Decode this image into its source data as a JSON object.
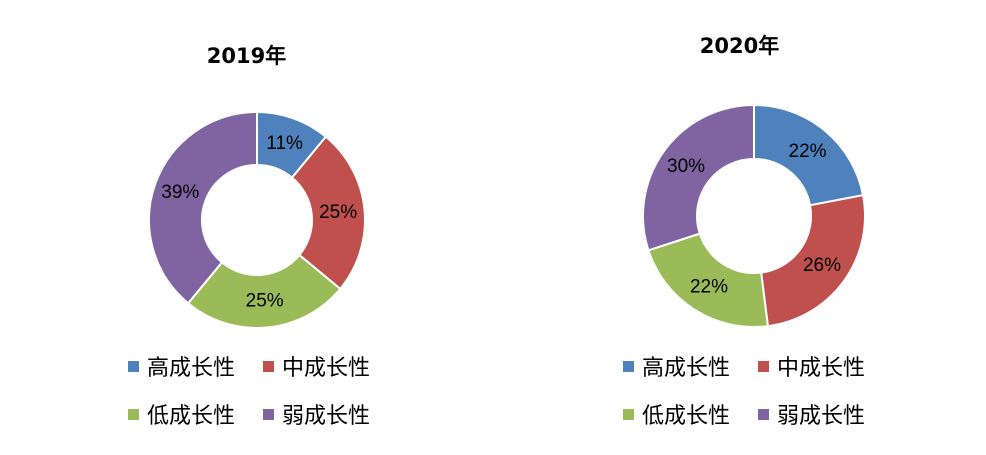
{
  "chart_data": [
    {
      "type": "pie",
      "variant": "donut",
      "title": "2019年",
      "categories": [
        "高成长性",
        "中成长性",
        "低成长性",
        "弱成长性"
      ],
      "values": [
        11,
        25,
        25,
        39
      ],
      "labels": [
        "11%",
        "25%",
        "25%",
        "39%"
      ],
      "colors": [
        "#4f81bd",
        "#c0504d",
        "#9bbb59",
        "#8064a2"
      ],
      "legend": "bottom"
    },
    {
      "type": "pie",
      "variant": "donut",
      "title": "2020年",
      "categories": [
        "高成长性",
        "中成长性",
        "低成长性",
        "弱成长性"
      ],
      "values": [
        22,
        26,
        22,
        30
      ],
      "labels": [
        "22%",
        "26%",
        "22%",
        "30%"
      ],
      "colors": [
        "#4f81bd",
        "#c0504d",
        "#9bbb59",
        "#8064a2"
      ],
      "legend": "bottom"
    }
  ]
}
